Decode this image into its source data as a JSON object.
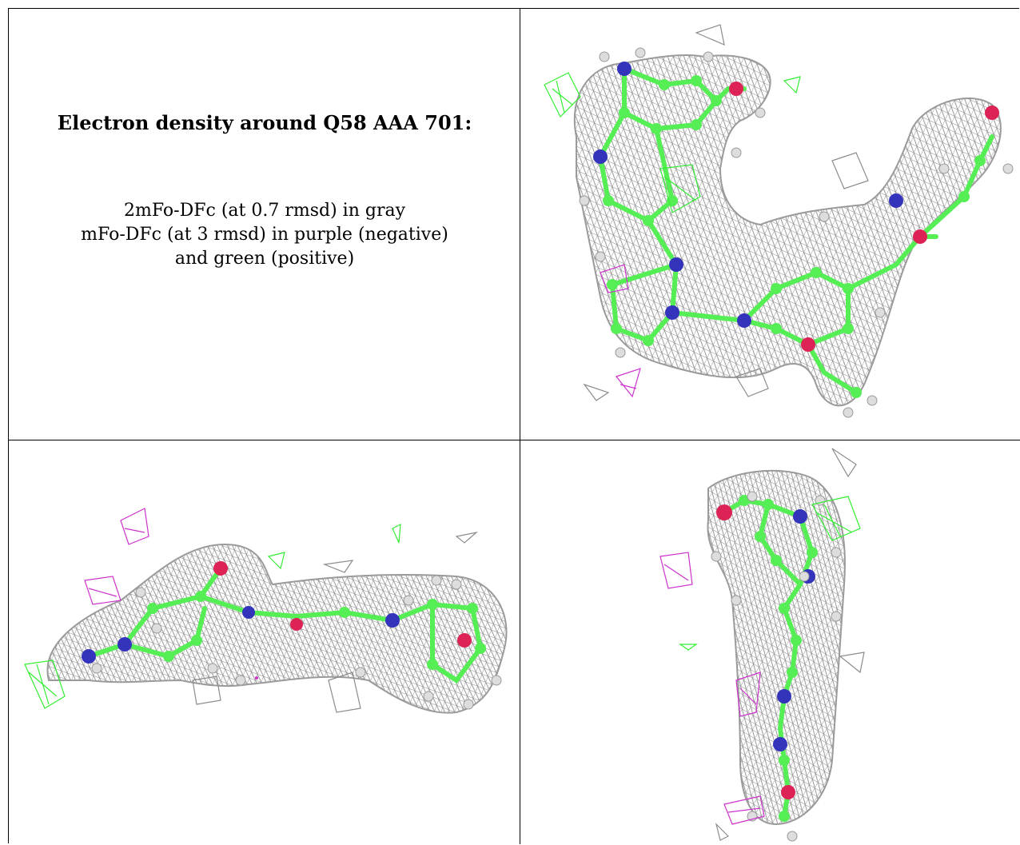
{
  "caption": {
    "title": "Electron density around Q58 AAA 701:",
    "line1": "2mFo-DFc (at 0.7 rmsd) in gray",
    "line2": "mFo-DFc (at 3 rmsd) in purple (negative)",
    "line3": "and green (positive)"
  },
  "colors": {
    "mesh_2fofc": "#8c8c8c",
    "mesh_neg": "#cc33cc",
    "mesh_pos": "#33ee33",
    "carbon": "#55ee55",
    "nitrogen": "#3333bb",
    "oxygen": "#dd2255",
    "hydrogen": "#dddddd"
  },
  "panels": [
    "top-view",
    "side-view",
    "end-view"
  ]
}
